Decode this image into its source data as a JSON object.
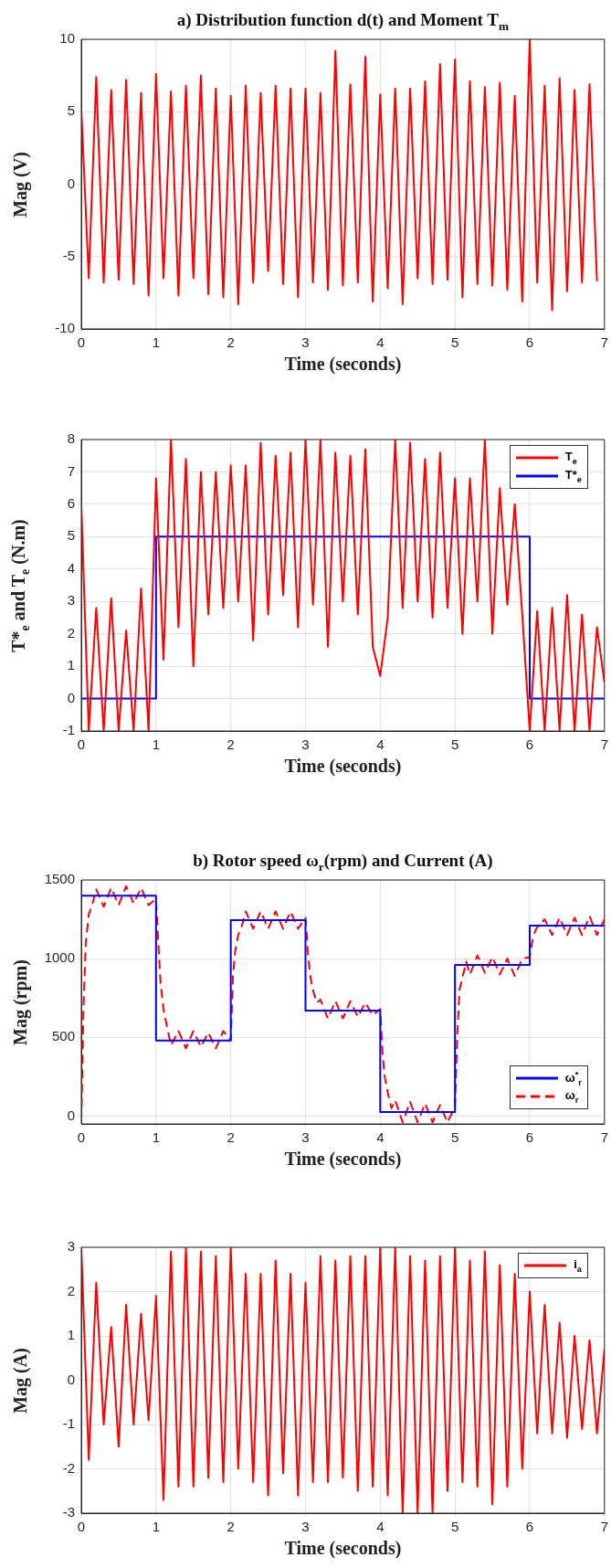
{
  "chart_data": [
    {
      "type": "line",
      "title": "a) Distribution function d(t) and Moment T$_{m}$",
      "xlabel": "Time (seconds)",
      "ylabel": "Mag (V)",
      "x": [
        0,
        0.1,
        0.2,
        0.3,
        0.4,
        0.5,
        0.6,
        0.7,
        0.8,
        0.9,
        1,
        1.1,
        1.2,
        1.3,
        1.4,
        1.5,
        1.6,
        1.7,
        1.8,
        1.9,
        2,
        2.1,
        2.2,
        2.3,
        2.4,
        2.5,
        2.6,
        2.7,
        2.8,
        2.9,
        3,
        3.1,
        3.2,
        3.3,
        3.4,
        3.5,
        3.6,
        3.7,
        3.8,
        3.9,
        4,
        4.1,
        4.2,
        4.3,
        4.4,
        4.5,
        4.6,
        4.7,
        4.8,
        4.9,
        5,
        5.1,
        5.2,
        5.3,
        5.4,
        5.5,
        5.6,
        5.7,
        5.8,
        5.9,
        6,
        6.1,
        6.2,
        6.3,
        6.4,
        6.5,
        6.6,
        6.7,
        6.8,
        6.9
      ],
      "series": [
        {
          "color": "#ff0000",
          "values": [
            5.2,
            -6.5,
            7.4,
            -6.8,
            6.5,
            -6.6,
            7.2,
            -6.9,
            6.3,
            -7.7,
            7.6,
            -6.5,
            6.4,
            -7.7,
            6.8,
            -6.5,
            7.5,
            -7.6,
            6.6,
            -7.8,
            6.1,
            -8.3,
            6.8,
            -6.8,
            6.3,
            -6.0,
            6.8,
            -6.9,
            6.6,
            -7.8,
            6.6,
            -6.8,
            6.3,
            -7.3,
            9.2,
            -7.0,
            6.9,
            -6.8,
            8.8,
            -8.1,
            6.2,
            -7.2,
            6.6,
            -8.3,
            6.6,
            -6.5,
            7.1,
            -6.9,
            8.3,
            -6.6,
            8.6,
            -7.8,
            7.1,
            -6.9,
            6.7,
            -7.0,
            7.0,
            -7.3,
            6.1,
            -8.1,
            10.0,
            -6.8,
            6.8,
            -8.7,
            7.3,
            -7.4,
            6.5,
            -6.8,
            6.9,
            -6.7
          ]
        }
      ],
      "xlim": [
        0,
        7
      ],
      "ylim": [
        -10,
        10
      ],
      "xticks": [
        0,
        1,
        2,
        3,
        4,
        5,
        6,
        7
      ],
      "yticks": [
        -10,
        -5,
        0,
        5,
        10
      ],
      "grid": true
    },
    {
      "type": "line",
      "xlabel": "Time (seconds)",
      "ylabel": "T*$_{e}$ and T$_{e}$ (N.m)",
      "x": [
        0,
        0.1,
        0.2,
        0.3,
        0.4,
        0.5,
        0.6,
        0.7,
        0.8,
        0.9,
        1,
        1.1,
        1.2,
        1.3,
        1.4,
        1.5,
        1.6,
        1.7,
        1.8,
        1.9,
        2,
        2.1,
        2.2,
        2.3,
        2.4,
        2.5,
        2.6,
        2.7,
        2.8,
        2.9,
        3,
        3.1,
        3.2,
        3.3,
        3.4,
        3.5,
        3.6,
        3.7,
        3.8,
        3.9,
        4,
        4.1,
        4.2,
        4.3,
        4.4,
        4.5,
        4.6,
        4.7,
        4.8,
        4.9,
        5,
        5.1,
        5.2,
        5.3,
        5.4,
        5.5,
        5.6,
        5.7,
        5.8,
        5.9,
        6,
        6.1,
        6.2,
        6.3,
        6.4,
        6.5,
        6.6,
        6.7,
        6.8,
        6.9,
        7
      ],
      "series": [
        {
          "name": "T$_{e}$",
          "color": "#ff0000",
          "values": [
            6.0,
            -1.0,
            2.8,
            -1.0,
            3.1,
            -1.0,
            2.1,
            -1.0,
            3.4,
            -1.0,
            6.8,
            1.2,
            8.0,
            2.2,
            7.4,
            1.0,
            7.0,
            2.6,
            7.0,
            2.8,
            7.2,
            3.0,
            7.2,
            1.8,
            7.9,
            2.6,
            7.5,
            3.2,
            7.6,
            2.2,
            8.0,
            2.9,
            8.0,
            1.6,
            7.6,
            3.0,
            7.5,
            2.6,
            7.7,
            1.6,
            0.7,
            2.5,
            8.0,
            2.8,
            7.9,
            3.0,
            7.4,
            2.5,
            7.6,
            2.8,
            6.8,
            2.0,
            6.8,
            3.0,
            8.0,
            2.0,
            6.5,
            2.9,
            6.0,
            2.6,
            -1.0,
            2.7,
            -1.0,
            2.8,
            -1.0,
            3.2,
            -1.0,
            2.6,
            -1.0,
            2.2,
            0.5
          ]
        },
        {
          "name": "T*$_{e}$",
          "color": "#0000ff",
          "x": [
            0,
            1,
            1,
            6,
            6,
            7
          ],
          "values": [
            0,
            0,
            5,
            5,
            0,
            0
          ]
        }
      ],
      "xlim": [
        0,
        7
      ],
      "ylim": [
        -1,
        8
      ],
      "xticks": [
        0,
        1,
        2,
        3,
        4,
        5,
        6,
        7
      ],
      "yticks": [
        -1,
        0,
        1,
        2,
        3,
        4,
        5,
        6,
        7,
        8
      ],
      "grid": true,
      "legend": "top right"
    },
    {
      "type": "line",
      "title": "b) Rotor speed ω$_{r}$(rpm) and Current (A)",
      "xlabel": "Time (seconds)",
      "ylabel": "Mag (rpm)",
      "series": [
        {
          "name": "ω$^{*}$$_{r}$",
          "color": "#0000ff",
          "x": [
            0,
            1,
            1,
            2,
            2,
            3,
            3,
            4,
            4,
            5,
            5,
            6,
            6,
            7
          ],
          "values": [
            1400,
            1400,
            480,
            480,
            1245,
            1245,
            670,
            670,
            25,
            25,
            960,
            960,
            1210,
            1210
          ]
        },
        {
          "name": "ω$_{r}$",
          "color": "#ff0000",
          "line_style": "dashed",
          "x": [
            0,
            0.03,
            0.06,
            0.1,
            0.15,
            0.2,
            0.3,
            0.4,
            0.5,
            0.6,
            0.7,
            0.8,
            0.9,
            1.0,
            1.03,
            1.06,
            1.1,
            1.15,
            1.2,
            1.3,
            1.4,
            1.5,
            1.6,
            1.7,
            1.8,
            1.9,
            2.0,
            2.03,
            2.06,
            2.1,
            2.15,
            2.2,
            2.3,
            2.4,
            2.5,
            2.6,
            2.7,
            2.8,
            2.9,
            3.0,
            3.03,
            3.06,
            3.1,
            3.15,
            3.2,
            3.3,
            3.4,
            3.5,
            3.6,
            3.7,
            3.8,
            3.9,
            4.0,
            4.03,
            4.06,
            4.1,
            4.15,
            4.2,
            4.3,
            4.4,
            4.5,
            4.6,
            4.7,
            4.8,
            4.9,
            5.0,
            5.03,
            5.06,
            5.1,
            5.15,
            5.2,
            5.3,
            5.4,
            5.5,
            5.6,
            5.7,
            5.8,
            5.9,
            6.0,
            6.03,
            6.06,
            6.1,
            6.2,
            6.3,
            6.4,
            6.5,
            6.6,
            6.7,
            6.8,
            6.9,
            7.0
          ],
          "values": [
            -40,
            700,
            1100,
            1280,
            1350,
            1440,
            1330,
            1450,
            1340,
            1460,
            1350,
            1450,
            1340,
            1380,
            1100,
            850,
            680,
            560,
            450,
            540,
            430,
            540,
            440,
            530,
            430,
            540,
            480,
            900,
            1050,
            1150,
            1210,
            1300,
            1190,
            1300,
            1190,
            1300,
            1190,
            1300,
            1190,
            1260,
            1050,
            900,
            800,
            720,
            740,
            620,
            730,
            620,
            730,
            630,
            720,
            640,
            680,
            400,
            250,
            150,
            50,
            100,
            -40,
            90,
            -40,
            80,
            -40,
            70,
            -40,
            60,
            500,
            800,
            880,
            980,
            900,
            1020,
            910,
            1010,
            900,
            1000,
            890,
            1000,
            1010,
            1100,
            1160,
            1200,
            1250,
            1150,
            1260,
            1150,
            1260,
            1150,
            1270,
            1150,
            1250
          ]
        }
      ],
      "xlim": [
        0,
        7
      ],
      "ylim": [
        -50,
        1500
      ],
      "xticks": [
        0,
        1,
        2,
        3,
        4,
        5,
        6,
        7
      ],
      "yticks": [
        0,
        500,
        1000,
        1500
      ],
      "grid": true,
      "legend": "bottom right"
    },
    {
      "type": "line",
      "xlabel": "Time (seconds)",
      "ylabel": "Mag (A)",
      "x": [
        0,
        0.1,
        0.2,
        0.3,
        0.4,
        0.5,
        0.6,
        0.7,
        0.8,
        0.9,
        1,
        1.1,
        1.2,
        1.3,
        1.4,
        1.5,
        1.6,
        1.7,
        1.8,
        1.9,
        2,
        2.1,
        2.2,
        2.3,
        2.4,
        2.5,
        2.6,
        2.7,
        2.8,
        2.9,
        3,
        3.1,
        3.2,
        3.3,
        3.4,
        3.5,
        3.6,
        3.7,
        3.8,
        3.9,
        4,
        4.1,
        4.2,
        4.3,
        4.4,
        4.5,
        4.6,
        4.7,
        4.8,
        4.9,
        5,
        5.1,
        5.2,
        5.3,
        5.4,
        5.5,
        5.6,
        5.7,
        5.8,
        5.9,
        6,
        6.1,
        6.2,
        6.3,
        6.4,
        6.5,
        6.6,
        6.7,
        6.8,
        6.9,
        7
      ],
      "series": [
        {
          "name": "i$_{a}$",
          "color": "#ff0000",
          "values": [
            3.0,
            -1.8,
            2.2,
            -1.0,
            1.2,
            -1.5,
            1.7,
            -1.0,
            1.5,
            -0.9,
            1.9,
            -2.7,
            2.9,
            -2.4,
            3.0,
            -2.4,
            2.9,
            -2.2,
            2.8,
            -2.3,
            3.0,
            -2.0,
            2.4,
            -2.3,
            2.4,
            -2.6,
            2.7,
            -2.1,
            2.4,
            -2.6,
            2.2,
            -2.3,
            2.8,
            -2.3,
            2.7,
            -2.2,
            2.8,
            -2.5,
            2.8,
            -2.4,
            3.0,
            -2.6,
            3.0,
            -3.0,
            2.8,
            -3.0,
            2.7,
            -3.0,
            2.8,
            -2.5,
            3.0,
            -2.3,
            2.7,
            -2.4,
            2.9,
            -2.8,
            2.6,
            -2.4,
            2.4,
            -2.0,
            2.0,
            -1.2,
            1.7,
            -1.2,
            1.3,
            -1.3,
            1.0,
            -1.1,
            0.9,
            -1.2,
            0.7
          ]
        }
      ],
      "xlim": [
        0,
        7
      ],
      "ylim": [
        -3,
        3
      ],
      "xticks": [
        0,
        1,
        2,
        3,
        4,
        5,
        6,
        7
      ],
      "yticks": [
        -3,
        -2,
        -1,
        0,
        1,
        2,
        3
      ],
      "grid": true,
      "legend": "top right"
    }
  ]
}
